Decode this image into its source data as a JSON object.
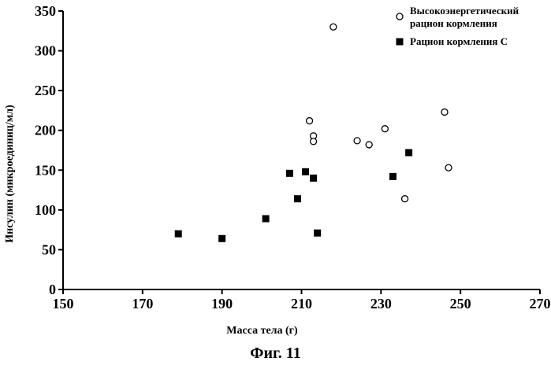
{
  "caption": "Фиг. 11",
  "chart_data": {
    "type": "scatter",
    "xlabel": "Масса тела (г)",
    "ylabel": "Инсулин (микроединиц/мл)",
    "xlim": [
      150,
      270
    ],
    "ylim": [
      0,
      350
    ],
    "x_ticks": [
      150,
      170,
      190,
      210,
      230,
      250,
      270
    ],
    "y_ticks": [
      0,
      50,
      100,
      150,
      200,
      250,
      300,
      350
    ],
    "legend_position": "top-right",
    "grid": false,
    "series": [
      {
        "name": "Высокоэнергетический рацион кормления",
        "legend_lines": [
          "Высокоэнергетический",
          "рацион кормления"
        ],
        "marker": "open-circle",
        "points": [
          [
            218,
            330
          ],
          [
            212,
            212
          ],
          [
            213,
            193
          ],
          [
            213,
            186
          ],
          [
            224,
            187
          ],
          [
            227,
            182
          ],
          [
            231,
            202
          ],
          [
            246,
            223
          ],
          [
            247,
            153
          ],
          [
            236,
            114
          ]
        ]
      },
      {
        "name": "Рацион кормления С",
        "legend_lines": [
          "Рацион кормления С"
        ],
        "marker": "filled-square",
        "points": [
          [
            179,
            70
          ],
          [
            190,
            64
          ],
          [
            201,
            89
          ],
          [
            207,
            146
          ],
          [
            209,
            114
          ],
          [
            211,
            148
          ],
          [
            213,
            140
          ],
          [
            214,
            71
          ],
          [
            233,
            142
          ],
          [
            237,
            172
          ]
        ]
      }
    ]
  }
}
